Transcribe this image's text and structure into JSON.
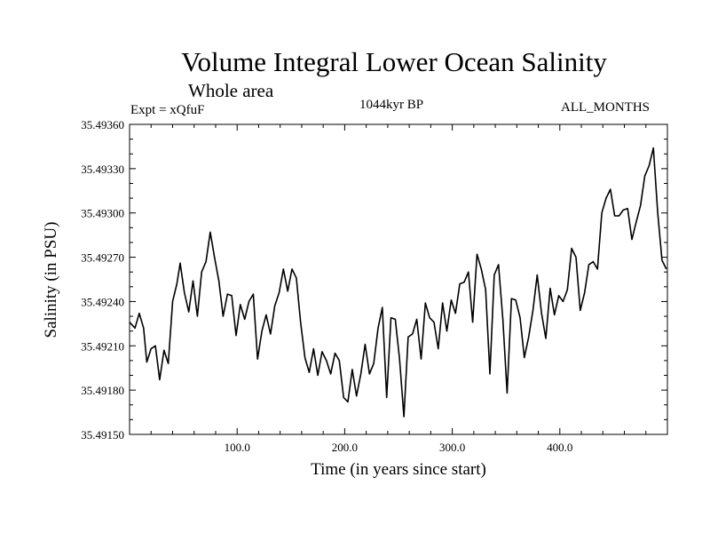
{
  "header": {
    "title": "Volume Integral Lower Ocean Salinity",
    "subtitle": "Whole area",
    "experiment": "Expt = xQfuF",
    "period": "1044kyr BP",
    "months": "ALL_MONTHS"
  },
  "chart_data": {
    "type": "line",
    "title": "Volume Integral Lower Ocean Salinity",
    "xlabel": "Time (in years since start)",
    "ylabel": "Salinity (in PSU)",
    "xlim": [
      0,
      500
    ],
    "ylim": [
      35.4915,
      35.4936
    ],
    "xticks": [
      100,
      200,
      300,
      400
    ],
    "xtick_labels": [
      "100.0",
      "200.0",
      "300.0",
      "400.0"
    ],
    "yticks": [
      35.4915,
      35.4918,
      35.4921,
      35.4924,
      35.4927,
      35.493,
      35.4933,
      35.4936
    ],
    "ytick_labels": [
      "35.49150",
      "35.49180",
      "35.49210",
      "35.49240",
      "35.49270",
      "35.49300",
      "35.49330",
      "35.49360"
    ],
    "grid": false,
    "series": [
      {
        "name": "Salinity",
        "x": [
          0,
          5,
          9,
          13,
          16,
          20,
          24,
          28,
          32,
          36,
          40,
          44,
          47,
          51,
          55,
          59,
          63,
          67,
          71,
          75,
          79,
          83,
          87,
          91,
          95,
          99,
          103,
          107,
          111,
          115,
          119,
          123,
          127,
          131,
          135,
          139,
          143,
          147,
          151,
          155,
          159,
          163,
          167,
          171,
          175,
          179,
          183,
          187,
          191,
          195,
          199,
          203,
          207,
          211,
          215,
          219,
          223,
          227,
          231,
          235,
          239,
          243,
          247,
          251,
          255,
          259,
          263,
          267,
          271,
          275,
          279,
          283,
          287,
          291,
          295,
          299,
          303,
          307,
          311,
          315,
          319,
          323,
          327,
          331,
          335,
          339,
          343,
          347,
          351,
          355,
          359,
          363,
          367,
          371,
          375,
          379,
          383,
          387,
          391,
          395,
          399,
          403,
          407,
          411,
          415,
          419,
          423,
          427,
          431,
          435,
          439,
          443,
          447,
          451,
          455,
          459,
          463,
          467,
          471,
          475,
          479,
          483,
          487,
          491,
          495,
          499
        ],
        "values": [
          35.49226,
          35.49222,
          35.49232,
          35.49222,
          35.49199,
          35.49208,
          35.4921,
          35.49187,
          35.49207,
          35.49198,
          35.4924,
          35.49252,
          35.49266,
          35.49246,
          35.49233,
          35.49254,
          35.4923,
          35.4926,
          35.49267,
          35.49287,
          35.4927,
          35.49254,
          35.4923,
          35.49245,
          35.49244,
          35.49217,
          35.49238,
          35.49228,
          35.4924,
          35.49245,
          35.49201,
          35.4922,
          35.49231,
          35.49218,
          35.49237,
          35.49246,
          35.49262,
          35.49247,
          35.49262,
          35.49256,
          35.49226,
          35.49202,
          35.49192,
          35.49208,
          35.4919,
          35.49206,
          35.492,
          35.49191,
          35.49205,
          35.492,
          35.49175,
          35.49172,
          35.49194,
          35.49176,
          35.49191,
          35.49211,
          35.49191,
          35.49198,
          35.49222,
          35.49236,
          35.49175,
          35.49229,
          35.49228,
          35.49201,
          35.49162,
          35.49216,
          35.49218,
          35.49228,
          35.49201,
          35.49239,
          35.49229,
          35.49226,
          35.49208,
          35.49239,
          35.4922,
          35.49241,
          35.49232,
          35.49252,
          35.49253,
          35.4926,
          35.49226,
          35.49272,
          35.49262,
          35.49248,
          35.49191,
          35.49258,
          35.49265,
          35.49228,
          35.49178,
          35.49242,
          35.49241,
          35.49229,
          35.49202,
          35.49216,
          35.49234,
          35.49258,
          35.49232,
          35.49215,
          35.49249,
          35.49231,
          35.49244,
          35.4924,
          35.49248,
          35.49276,
          35.4927,
          35.49234,
          35.49246,
          35.49265,
          35.49267,
          35.49262,
          35.493,
          35.4931,
          35.49316,
          35.49298,
          35.49298,
          35.49302,
          35.49303,
          35.49282,
          35.49294,
          35.49305,
          35.49325,
          35.49332,
          35.49344,
          35.493,
          35.49268,
          35.49262
        ]
      }
    ]
  }
}
